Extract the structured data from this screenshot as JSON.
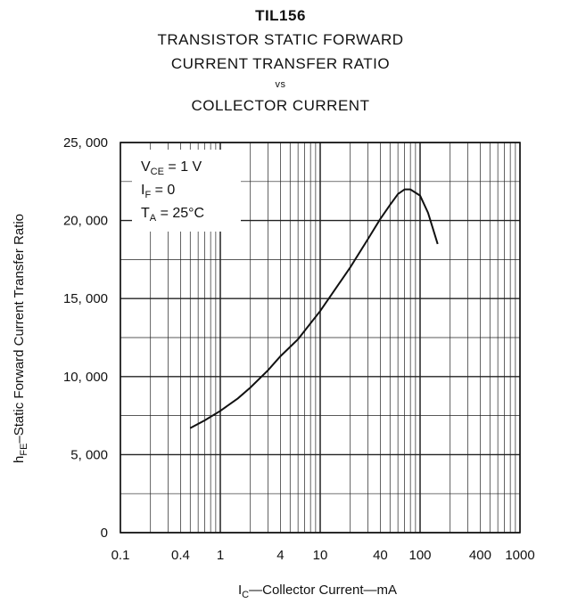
{
  "chart_data": {
    "type": "line",
    "title_lines": [
      "TIL156",
      "TRANSISTOR STATIC FORWARD",
      "CURRENT TRANSFER RATIO",
      "vs",
      "COLLECTOR CURRENT"
    ],
    "xlabel": {
      "main": "I",
      "sub": "C",
      "rest": "—Collector Current—mA"
    },
    "ylabel": {
      "main": "h",
      "sub": "FE",
      "rest": "–Static Forward Current Transfer Ratio"
    },
    "x_scale": "log",
    "xlim": [
      0.1,
      1000
    ],
    "ylim": [
      0,
      25000
    ],
    "x_ticks": [
      0.1,
      0.4,
      1,
      4,
      10,
      40,
      100,
      400,
      1000
    ],
    "x_tick_labels": [
      "0.1",
      "0.4",
      "1",
      "4",
      "10",
      "40",
      "100",
      "400",
      "1000"
    ],
    "y_ticks": [
      0,
      5000,
      10000,
      15000,
      20000,
      25000
    ],
    "y_tick_labels": [
      "0",
      "5, 000",
      "10, 000",
      "15, 000",
      "20, 000",
      "25, 000"
    ],
    "grid": true,
    "conditions": [
      {
        "main": "V",
        "sub": "CE",
        "rest": " = 1 V"
      },
      {
        "main": "I",
        "sub": "F",
        "rest": " = 0"
      },
      {
        "main": "T",
        "sub": "A",
        "rest": " = 25°C"
      }
    ],
    "series": [
      {
        "x": [
          0.5,
          0.7,
          1,
          1.5,
          2,
          3,
          4,
          6,
          10,
          20,
          30,
          40,
          50,
          60,
          70,
          80,
          100,
          120,
          150
        ],
        "y": [
          6700,
          7200,
          7800,
          8600,
          9300,
          10400,
          11300,
          12400,
          14200,
          17000,
          18800,
          20100,
          21000,
          21700,
          22000,
          22000,
          21600,
          20500,
          18500
        ]
      }
    ]
  }
}
